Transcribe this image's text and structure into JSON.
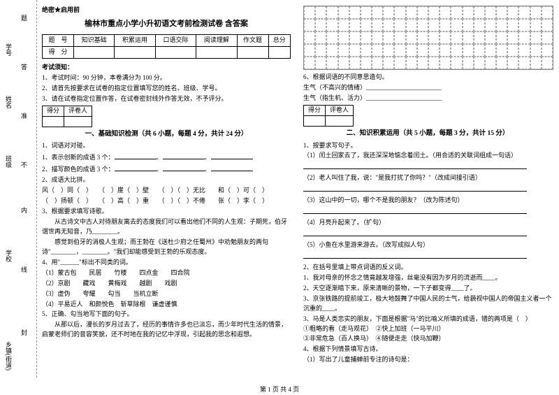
{
  "binding": {
    "labels": [
      "乡镇(街道)",
      "封",
      "线",
      "学校",
      "内",
      "不",
      "班级",
      "准",
      "姓名",
      "答",
      "学号",
      "题"
    ]
  },
  "secret": "绝密★启用前",
  "title": "榆林市重点小学小升初语文考前检测试卷 含答案",
  "score_headers": [
    "题　号",
    "知识基础",
    "积累运用",
    "口语交际",
    "阅读理解",
    "作文题",
    "总分"
  ],
  "score_row2": "得　分",
  "notice_title": "考试须知：",
  "notices": [
    "1、考试时间：90 分钟，本卷满分为 100 分。",
    "2、请首先按要求在试卷的指定位置填写您的姓名、班级、学号。",
    "3、请在试卷指定位置作答，在试卷密封线外作答无效，不予评分。"
  ],
  "mini_headers": [
    "得分",
    "评卷人"
  ],
  "sec1_title": "一、基础知识检测（共 6 小题，每题 4 分，共计 24 分）",
  "q1": {
    "stem": "1、词语对对碰。",
    "l1": "1、表示创新的成语 3 个：",
    "l2": "2、描写颜色的成语 3 个："
  },
  "q2": {
    "stem": "2、成语大比拼。",
    "l1": "风（　）同（　）　　（　）崖（　）壁　　（　）（　）无比　　和（　）可（　）",
    "l2": "（　）扬顿（　）　　（　）高（　）重　　（　）（　）不倦　　张（　）李（　）"
  },
  "q3": {
    "stem": "3、根据要求填写诗歌。",
    "body1": "　　从古诗文中古人对待朋友离去的态度我们可以看出他们不同的人生观：子期死，伯牙谓世再无知音，乃________。",
    "body2": "　　感觉到伯牙的消极人生观；而王勃在《送杜少府之任蜀州》中劝勉朋友的两句诗\"________，________。\"我们却能感受到王勃的乐观态度。"
  },
  "q4": {
    "stem": "4、用\"______\"标出不同类的词。",
    "r1": "（1）蒙古包　　民居　　竹楼　　四点金　　四合院",
    "r2": "（2）京剧　　藏戏　　黄梅戏　　越剧　　戏剧",
    "r3": "（3）虚伪　　夸耀　　勾当　　当机立断",
    "r4": "（4）平易近人　和颜悦色　斩草除根　谦虚谨慎"
  },
  "q5": {
    "stem": "5、正确、勾当地写下面的句子。",
    "body": "　　从那以后，漫长的岁月过去了，经历的事情许多也已淡忘，而少年时代生活的情景，启蒙老师们的音容笑貌，还不时地在我的记忆中浮现，引起我的思念和遐想。"
  },
  "q6": {
    "stem": "6、根据词语的不同意思造句。",
    "l1": "生气（不高兴的情绪）________________________",
    "l2": "生气（指生机、活力）________________________"
  },
  "sec2_title": "二、知识积累运用（共 5 小题，每题 3 分，共计 15 分）",
  "r1": {
    "stem": "1、按要求写句子。",
    "a": "（1）闰土回家去了，我还深深地惦念着闰土。（用合适的关联词组成一句话）",
    "b": "（2）老人叫住了我，说：\"是我打扰了你吗？\"（改成间接引语）",
    "c": "（3）这山中的一切，哪个不是我的朋友？（改为陈述句）",
    "d": "（4）月亮升起来了。（扩句）",
    "e": "（5）小鱼在水里游来游去。（改写成拟人句）"
  },
  "r2": {
    "stem": "2、在括号里填上带点词语的反义词。",
    "a": "1、我对母亲的怀念之情竟越发增强，丝毫没有因为岁月的流逝而____。",
    "b": "2、天空逐渐暗下来，原来清晰的景物，一下子都变得____了。",
    "c": "3、京张铁路的提前竣工，极大地鼓舞了中国人民的士气，给藐视中国人的帝国主义者一个沉重的____。"
  },
  "r3": {
    "stem": "3、马是人类忠实的朋友，下面是根据\"马\"的比喻义所填的成语，错的两项是（　）",
    "opts": "①粗略的看（走马观花）　②快上加班（一马平川）\n③非常危急（百人换马）　④随便走走（快马加鞭）"
  },
  "r4": {
    "stem": "4、根据下列情景填写古诗。",
    "a": "（1）写出了儿童捕蝉前专注的诗句是："
  },
  "footer": "第 1 页 共 4 页"
}
